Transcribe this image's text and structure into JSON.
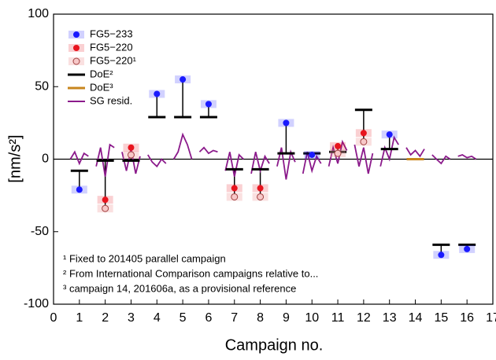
{
  "chart_data": {
    "type": "dotlevel",
    "y_label": "[nm/s²]",
    "x_label": "Campaign no.",
    "xlim": [
      0,
      17
    ],
    "xticks": [
      0,
      1,
      2,
      3,
      4,
      5,
      6,
      7,
      8,
      9,
      10,
      11,
      12,
      13,
      14,
      15,
      16,
      17
    ],
    "ylim": [
      -100,
      100
    ],
    "yticks": [
      -100,
      -50,
      0,
      50,
      100
    ],
    "series": [
      {
        "name": "FG5−233",
        "color": "#1a1aff",
        "style": "dot",
        "x": [
          1,
          4,
          5,
          6,
          9,
          10,
          13,
          15,
          16
        ],
        "values": [
          -21,
          45,
          55,
          38,
          25,
          3,
          17,
          -66,
          -62
        ]
      },
      {
        "name": "FG5−220",
        "color": "#e8141e",
        "style": "dot",
        "x": [
          2,
          3,
          7,
          8,
          11,
          12
        ],
        "values": [
          -28,
          8,
          -20,
          -20,
          9,
          18
        ]
      },
      {
        "name": "FG5−220¹",
        "color": "#f2a5a5",
        "style": "open-dot",
        "x": [
          2,
          3,
          7,
          8,
          11,
          12
        ],
        "values": [
          -34,
          3,
          -26,
          -26,
          4,
          12
        ]
      },
      {
        "name": "DoE²",
        "color": "#000000",
        "style": "level",
        "x": [
          1,
          2,
          3,
          4,
          5,
          6,
          7,
          8,
          9,
          10,
          11,
          12,
          13,
          15,
          16
        ],
        "values": [
          -8,
          -1,
          -1,
          29,
          29,
          29,
          -7,
          -7,
          4,
          4,
          5,
          34,
          7,
          -59,
          -59
        ]
      },
      {
        "name": "DoE³",
        "color": "#c8861e",
        "style": "level",
        "x": [
          14
        ],
        "values": [
          0
        ]
      },
      {
        "name": "SG resid.",
        "color": "#8b1a8b",
        "style": "line",
        "x": [
          0.65,
          0.82,
          1,
          1.18,
          1.35,
          null,
          1.65,
          1.82,
          2,
          2.18,
          2.35,
          null,
          2.65,
          2.82,
          3,
          3.18,
          3.35,
          null,
          3.65,
          3.82,
          4,
          4.18,
          4.35,
          null,
          4.65,
          4.82,
          5,
          5.18,
          5.35,
          null,
          5.65,
          5.82,
          6,
          6.18,
          6.35,
          null,
          6.65,
          6.82,
          7,
          7.18,
          7.35,
          null,
          7.65,
          7.82,
          8,
          8.18,
          8.35,
          null,
          8.65,
          8.82,
          9,
          9.18,
          9.35,
          null,
          9.65,
          9.82,
          10,
          10.18,
          10.35,
          null,
          10.65,
          10.82,
          11,
          11.18,
          11.35,
          null,
          11.65,
          11.82,
          12,
          12.18,
          12.35,
          null,
          12.65,
          12.82,
          13,
          13.18,
          13.35,
          null,
          13.65,
          13.82,
          14,
          14.18,
          14.35,
          null,
          14.65,
          14.82,
          15,
          15.18,
          15.35,
          null,
          15.65,
          15.82,
          16,
          16.18,
          16.35
        ],
        "values": [
          0,
          5,
          -3,
          4,
          2,
          null,
          -5,
          8,
          -12,
          10,
          8,
          null,
          5,
          -8,
          7,
          -10,
          2,
          null,
          3,
          -2,
          -5,
          0,
          -3,
          null,
          0,
          5,
          17,
          10,
          0,
          null,
          5,
          8,
          4,
          6,
          5,
          null,
          -8,
          5,
          -12,
          3,
          0,
          null,
          -10,
          5,
          -8,
          2,
          -3,
          null,
          -5,
          8,
          -14,
          5,
          -2,
          null,
          -10,
          5,
          -8,
          2,
          -3,
          null,
          -5,
          8,
          -3,
          12,
          6,
          null,
          10,
          -5,
          8,
          -10,
          4,
          null,
          -5,
          8,
          0,
          15,
          10,
          null,
          8,
          3,
          6,
          2,
          7,
          null,
          3,
          0,
          -3,
          2,
          0,
          null,
          2,
          3,
          1,
          2,
          0
        ]
      }
    ],
    "annotations": [
      "¹ Fixed to 201405 parallel campaign",
      "² From International Comparison campaigns relative to...",
      "³ campaign 14, 201606a, as a provisional reference"
    ]
  }
}
